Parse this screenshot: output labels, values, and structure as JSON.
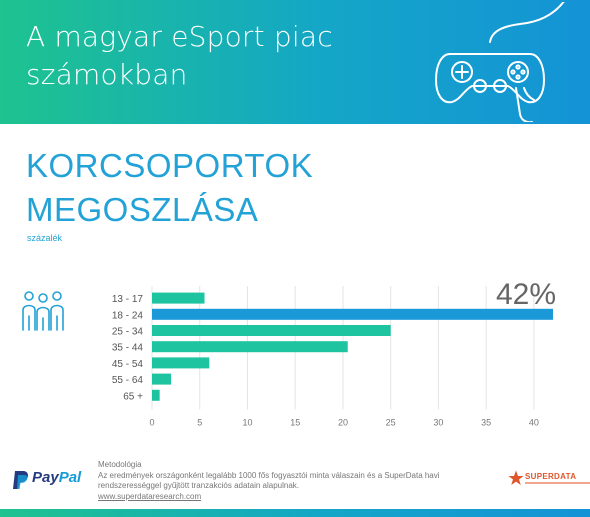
{
  "header": {
    "title": "A magyar eSport piac számokban"
  },
  "section": {
    "title_line1": "KORCSOPORTOK",
    "title_line2": "MEGOSZLÁSA",
    "unit": "százalék"
  },
  "chart_data": {
    "type": "bar",
    "orientation": "horizontal",
    "categories": [
      "13 - 17",
      "18 - 24",
      "25 - 34",
      "35 - 44",
      "45 - 54",
      "55 - 64",
      "65 +"
    ],
    "values": [
      5.5,
      42,
      25,
      20.5,
      6,
      2,
      0.8
    ],
    "highlight_index": 1,
    "highlight_label": "42%",
    "x_ticks": [
      0,
      5,
      10,
      15,
      20,
      25,
      30,
      35,
      40
    ],
    "xlim": [
      0,
      42
    ],
    "ylabel": "százalék",
    "grid": true,
    "colors": {
      "default": "#1ec3a0",
      "highlight": "#1a98d8"
    }
  },
  "footer": {
    "method_title": "Metodológia",
    "method_line1": "Az eredmények országonként legalább 1000 fős fogyasztói minta válaszain és a SuperData havi",
    "method_line2": "rendszerességgel gyűjtött tranzakciós adatain alapulnak.",
    "url": "www.superdataresearch.com",
    "paypal_a": "Pay",
    "paypal_b": "Pal",
    "superdata": "SUPERDATA"
  },
  "icons": [
    "game-controller-icon",
    "people-icon",
    "paypal-icon",
    "superdata-star-icon"
  ],
  "colors": {
    "accent_green": "#1ec38f",
    "accent_blue": "#1493d6",
    "title_blue": "#22a2d6"
  }
}
